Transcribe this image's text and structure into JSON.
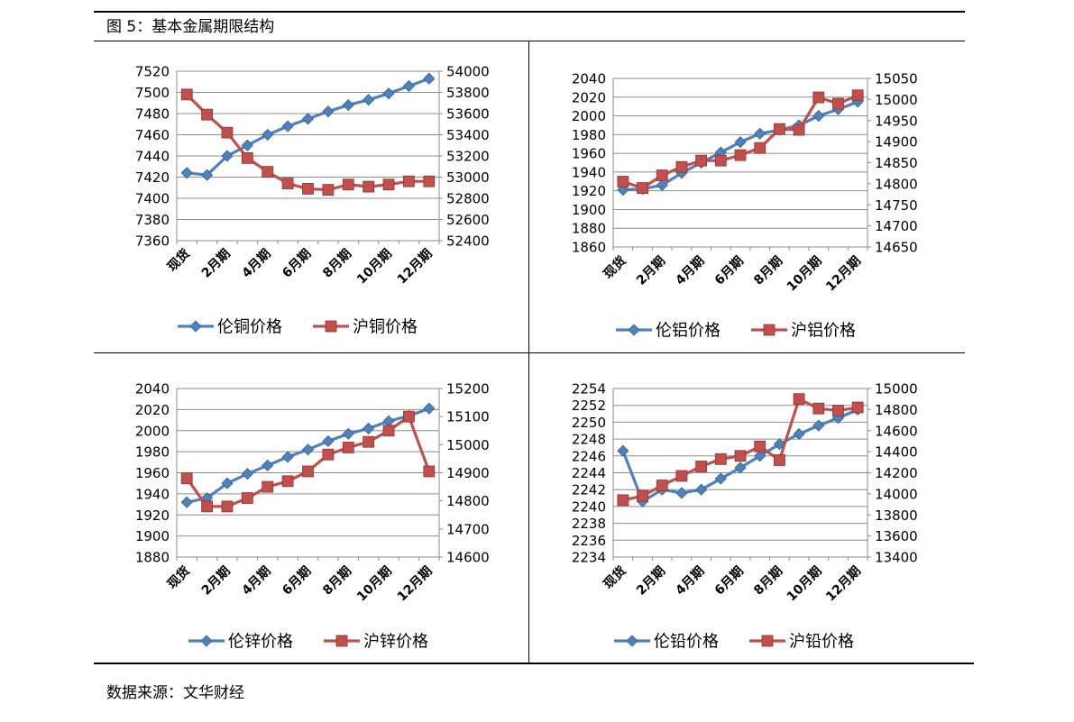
{
  "figure": {
    "title": "图 5：基本金属期限结构",
    "source": "数据来源：文华财经"
  },
  "colors": {
    "left_series": "#4F81BD",
    "right_series": "#C0504D",
    "grid": "#8c8c8c"
  },
  "chart_data": [
    {
      "type": "line",
      "categories": [
        "现货",
        "",
        "2月期",
        "",
        "4月期",
        "",
        "6月期",
        "",
        "8月期",
        "",
        "10月期",
        "",
        "12月期"
      ],
      "y_left": {
        "min": 7360,
        "max": 7520,
        "step": 20
      },
      "y_right": {
        "min": 52400,
        "max": 54000,
        "step": 200
      },
      "legend_placement": "bottom",
      "series": [
        {
          "name": "伦铜价格",
          "axis": "left",
          "values": [
            7424,
            7422,
            7440,
            7450,
            7460,
            7468,
            7475,
            7482,
            7488,
            7493,
            7499,
            7506,
            7513
          ]
        },
        {
          "name": "沪铜价格",
          "axis": "right",
          "values": [
            53780,
            53590,
            53420,
            53180,
            53050,
            52940,
            52890,
            52880,
            52930,
            52910,
            52930,
            52960,
            52960
          ]
        }
      ]
    },
    {
      "type": "line",
      "categories": [
        "现货",
        "",
        "2月期",
        "",
        "4月期",
        "",
        "6月期",
        "",
        "8月期",
        "",
        "10月期",
        "",
        "12月期"
      ],
      "y_left": {
        "min": 1860,
        "max": 2040,
        "step": 20
      },
      "y_right": {
        "min": 14650,
        "max": 15050,
        "step": 50
      },
      "legend_placement": "bottom",
      "series": [
        {
          "name": "伦铝价格",
          "axis": "left",
          "values": [
            1921,
            1922,
            1926,
            1939,
            1950,
            1961,
            1972,
            1981,
            1985,
            1990,
            2000,
            2007,
            2015
          ]
        },
        {
          "name": "沪铝价格",
          "axis": "right",
          "values": [
            14805,
            14790,
            14820,
            14840,
            14855,
            14855,
            14868,
            14885,
            14930,
            14928,
            15005,
            14990,
            15010
          ]
        }
      ]
    },
    {
      "type": "line",
      "categories": [
        "现货",
        "",
        "2月期",
        "",
        "4月期",
        "",
        "6月期",
        "",
        "8月期",
        "",
        "10月期",
        "",
        "12月期"
      ],
      "y_left": {
        "min": 1880,
        "max": 2040,
        "step": 20
      },
      "y_right": {
        "min": 14600,
        "max": 15200,
        "step": 100
      },
      "legend_placement": "bottom",
      "series": [
        {
          "name": "伦锌价格",
          "axis": "left",
          "values": [
            1932,
            1936,
            1950,
            1959,
            1967,
            1975,
            1982,
            1990,
            1997,
            2002,
            2009,
            2014,
            2021
          ]
        },
        {
          "name": "沪锌价格",
          "axis": "right",
          "values": [
            14880,
            14780,
            14780,
            14810,
            14850,
            14870,
            14905,
            14965,
            14990,
            15010,
            15050,
            15100,
            14905
          ]
        }
      ]
    },
    {
      "type": "line",
      "categories": [
        "现货",
        "",
        "2月期",
        "",
        "4月期",
        "",
        "6月期",
        "",
        "8月期",
        "",
        "10月期",
        "",
        "12月期"
      ],
      "y_left": {
        "min": 2234,
        "max": 2254,
        "step": 2
      },
      "y_right": {
        "min": 13400,
        "max": 15000,
        "step": 200
      },
      "legend_placement": "bottom",
      "series": [
        {
          "name": "伦铅价格",
          "axis": "left",
          "values": [
            2246.6,
            2240.6,
            2242.0,
            2241.6,
            2242.0,
            2243.3,
            2244.6,
            2246.0,
            2247.4,
            2248.6,
            2249.6,
            2250.5,
            2251.5
          ]
        },
        {
          "name": "沪铅价格",
          "axis": "right",
          "values": [
            13940,
            13980,
            14080,
            14170,
            14260,
            14330,
            14360,
            14450,
            14320,
            14900,
            14810,
            14790,
            14820
          ]
        }
      ]
    }
  ]
}
